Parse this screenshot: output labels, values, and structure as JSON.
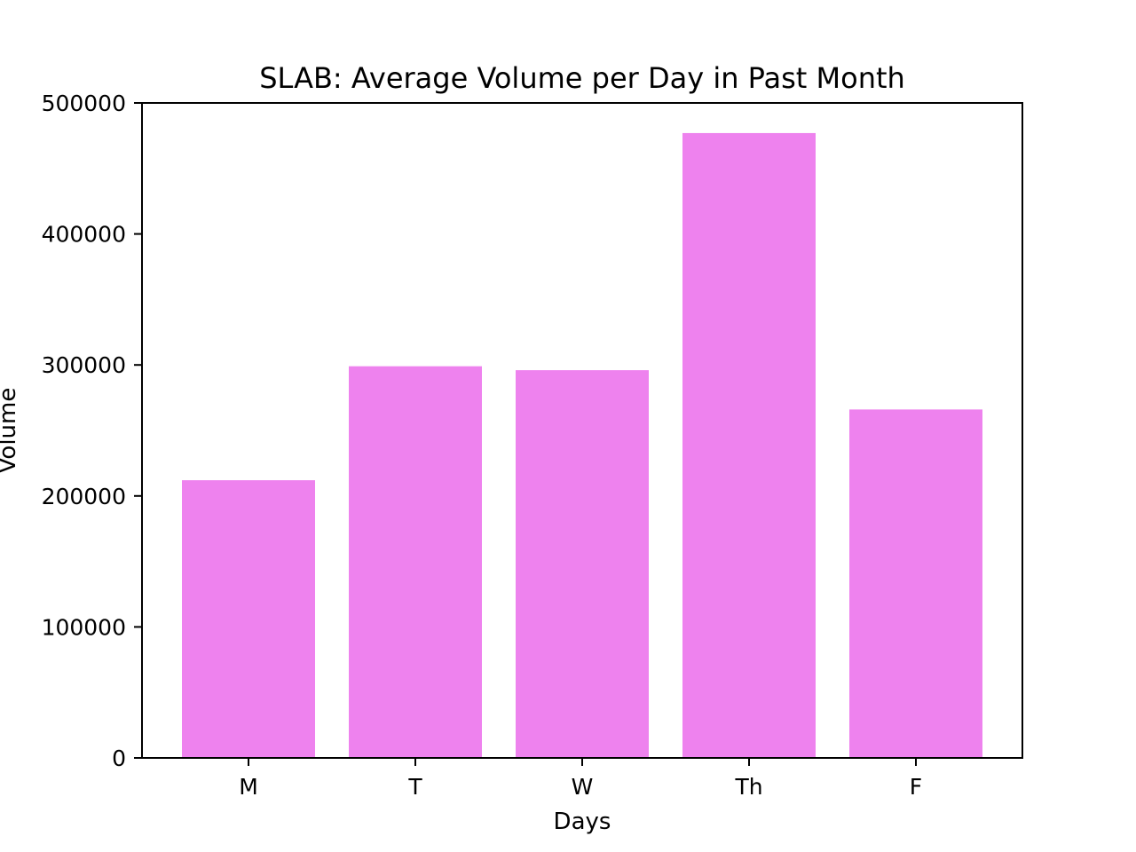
{
  "chart_data": {
    "type": "bar",
    "title": "SLAB: Average Volume per Day in Past Month",
    "xlabel": "Days",
    "ylabel": "Volume",
    "categories": [
      "M",
      "T",
      "W",
      "Th",
      "F"
    ],
    "values": [
      212000,
      299000,
      296000,
      477000,
      266000
    ],
    "ylim": [
      0,
      500000
    ],
    "yticks": [
      0,
      100000,
      200000,
      300000,
      400000,
      500000
    ],
    "ytick_labels": [
      "0",
      "100000",
      "200000",
      "300000",
      "400000",
      "500000"
    ],
    "bar_color": "#ee82ee",
    "grid": false,
    "legend": "none"
  }
}
